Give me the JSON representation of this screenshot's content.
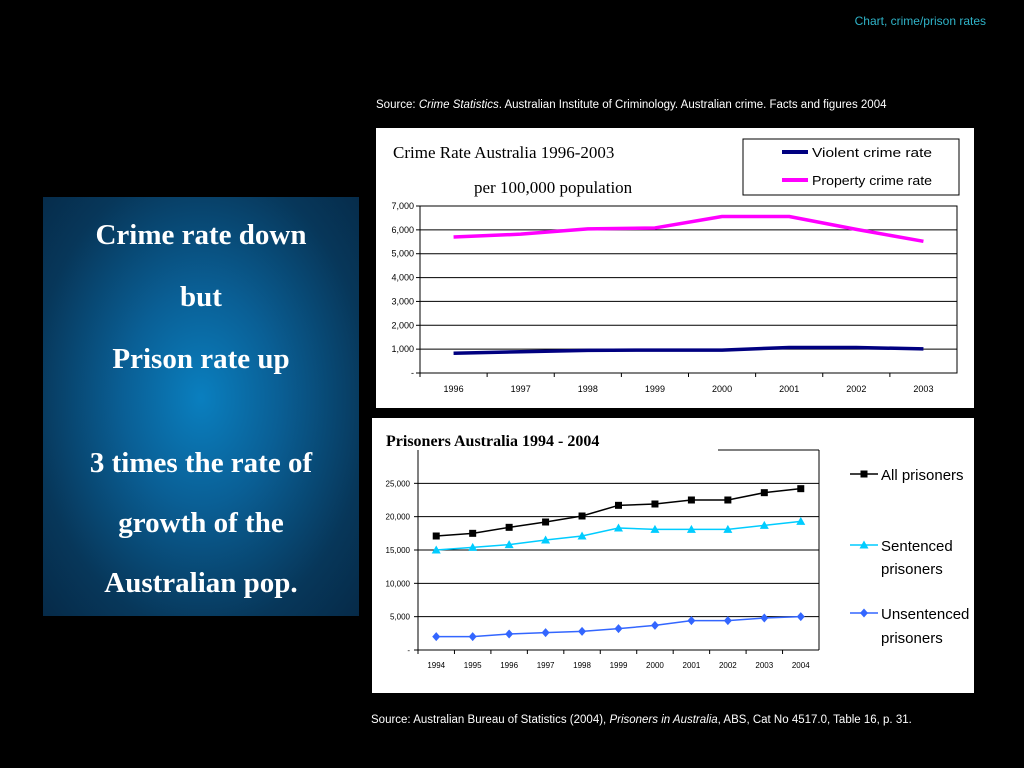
{
  "slide_label": "Chart, crime/prison rates",
  "source_top": {
    "prefix": "Source:  ",
    "italic": "Crime Statistics",
    "rest": ". Australian Institute of Criminology. Australian crime. Facts and figures 2004"
  },
  "source_bottom": {
    "prefix": "Source:  Australian Bureau of Statistics (2004), ",
    "italic": "Prisoners in Australia",
    "rest": ", ABS, Cat No 4517.0, Table 16, p. 31."
  },
  "callout": {
    "line1": "Crime rate down",
    "line2": "but",
    "line3": "Prison rate up",
    "line4": "3 times the rate of",
    "line5": "growth of the",
    "line6": "Australian pop."
  },
  "chart_data": [
    {
      "type": "line",
      "title": "Crime Rate Australia 1996-2003",
      "subtitle": "per 100,000 population",
      "x": [
        "1996",
        "1997",
        "1998",
        "1999",
        "2000",
        "2001",
        "2002",
        "2003"
      ],
      "ylim": [
        0,
        7000
      ],
      "yticks": [
        "-",
        "1,000",
        "2,000",
        "3,000",
        "4,000",
        "5,000",
        "6,000",
        "7,000"
      ],
      "grid": true,
      "legend": "top-right",
      "series": [
        {
          "name": "Violent crime rate",
          "color": "#000080",
          "values": [
            830,
            890,
            950,
            960,
            960,
            1070,
            1070,
            1010
          ]
        },
        {
          "name": "Property crime rate",
          "color": "#ff00ff",
          "values": [
            5700,
            5820,
            6040,
            6080,
            6560,
            6560,
            6020,
            5520
          ]
        }
      ]
    },
    {
      "type": "line",
      "title": "Prisoners Australia  1994 - 2004",
      "x": [
        "1994",
        "1995",
        "1996",
        "1997",
        "1998",
        "1999",
        "2000",
        "2001",
        "2002",
        "2003",
        "2004"
      ],
      "ylim": [
        0,
        30000
      ],
      "yticks": [
        "-",
        "5,000",
        "10,000",
        "15,000",
        "20,000",
        "25,000"
      ],
      "grid": true,
      "legend": "right",
      "series": [
        {
          "name": "All prisoners",
          "color": "#000000",
          "marker": "square",
          "values": [
            17100,
            17500,
            18400,
            19200,
            20100,
            21700,
            21900,
            22500,
            22500,
            23600,
            24200
          ]
        },
        {
          "name": "Sentenced prisoners",
          "color": "#00ccff",
          "marker": "triangle",
          "values": [
            15000,
            15400,
            15800,
            16500,
            17100,
            18300,
            18100,
            18100,
            18100,
            18700,
            19300
          ]
        },
        {
          "name": "Unsentenced prisoners",
          "color": "#3366ff",
          "marker": "diamond",
          "values": [
            2000,
            2000,
            2400,
            2600,
            2800,
            3200,
            3700,
            4400,
            4400,
            4800,
            5000
          ]
        }
      ]
    }
  ]
}
